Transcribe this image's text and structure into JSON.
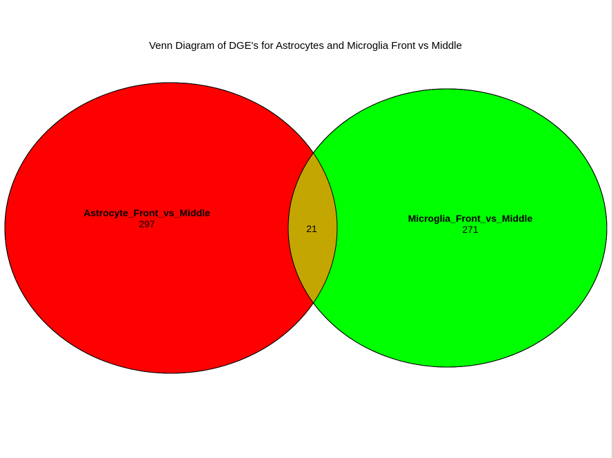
{
  "title": "Venn Diagram of DGE's for Astrocytes and Microglia Front vs Middle",
  "sets": [
    {
      "name": "Astrocyte_Front_vs_Middle",
      "count": "297",
      "color": "#ff0000"
    },
    {
      "name": "Microglia_Front_vs_Middle",
      "count": "271",
      "color": "#00ff00"
    }
  ],
  "intersection": {
    "count": "21",
    "color": "#c4a600"
  }
}
